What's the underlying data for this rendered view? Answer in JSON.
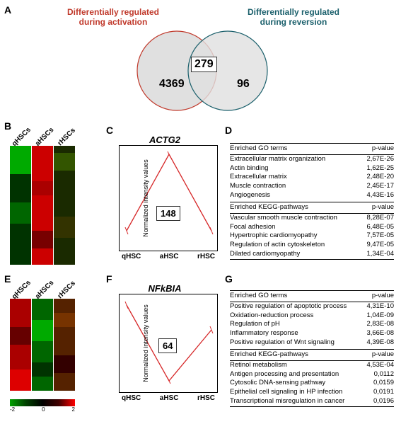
{
  "panels": {
    "A": "A",
    "B": "B",
    "C": "C",
    "D": "D",
    "E": "E",
    "F": "F",
    "G": "G"
  },
  "venn": {
    "left_label_l1": "Differentially regulated",
    "left_label_l2": "during activation",
    "right_label_l1": "Differentially regulated",
    "right_label_l2": "during reversion",
    "left_only": "4369",
    "intersection": "279",
    "right_only": "96",
    "left_stroke": "#c0392b",
    "right_stroke": "#1a5f6b",
    "fill": "#e0e0e0"
  },
  "heatmap": {
    "col1": "qHSCs",
    "col2": "aHSCs",
    "col3": "rHSCs",
    "legend_min": "-2",
    "legend_mid": "0",
    "legend_max": "2",
    "colors": {
      "low": "#00a000",
      "mid": "#000000",
      "high": "#ff0000"
    }
  },
  "chartC": {
    "title": "ACTG2",
    "count": "148",
    "x1": "qHSC",
    "x2": "aHSC",
    "x3": "rHSC",
    "ylabel": "Normalized intensity values",
    "line_color": "#d62728",
    "points": [
      [
        10,
        120
      ],
      [
        70,
        12
      ],
      [
        130,
        120
      ]
    ]
  },
  "chartF": {
    "title": "NFkBIA",
    "count": "64",
    "x1": "qHSC",
    "x2": "aHSC",
    "x3": "rHSC",
    "ylabel": "Normalized intensity values",
    "line_color": "#d62728",
    "points": [
      [
        10,
        15
      ],
      [
        70,
        122
      ],
      [
        130,
        50
      ]
    ]
  },
  "tableD": {
    "go_header_l": "Enriched GO terms",
    "go_header_r": "p-value",
    "go_rows": [
      [
        "Extracellular matrix organization",
        "2,67E-26"
      ],
      [
        "Actin binding",
        "1,62E-25"
      ],
      [
        "Extracellular matrix",
        "2,48E-20"
      ],
      [
        "Muscle contraction",
        "2,45E-17"
      ],
      [
        "Angiogenesis",
        "4,43E-16"
      ]
    ],
    "kegg_header_l": "Enriched KEGG-pathways",
    "kegg_header_r": "p-value",
    "kegg_rows": [
      [
        "Vascular smooth muscle contraction",
        "8,28E-07"
      ],
      [
        "Focal adhesion",
        "6,48E-05"
      ],
      [
        "Hypertrophic cardiomyopathy",
        "7,57E-05"
      ],
      [
        "Regulation of actin cytoskeleton",
        "9,47E-05"
      ],
      [
        "Dilated cardiomyopathy",
        "1,34E-04"
      ]
    ]
  },
  "tableG": {
    "go_header_l": "Enriched GO terms",
    "go_header_r": "p-value",
    "go_rows": [
      [
        "Positive regulation of apoptotic process",
        "4,31E-10"
      ],
      [
        "Oxidation-reduction process",
        "1,04E-09"
      ],
      [
        "Regulation of pH",
        "2,83E-08"
      ],
      [
        "Inflammatory response",
        "3,66E-08"
      ],
      [
        "Positive regulation of Wnt signaling",
        "4,39E-08"
      ]
    ],
    "kegg_header_l": "Enriched KEGG-pathways",
    "kegg_header_r": "p-value",
    "kegg_rows": [
      [
        "Retinol metabolism",
        "4,53E-04"
      ],
      [
        "Antigen processing and presentation",
        "0,0112"
      ],
      [
        "Cytosolic DNA-sensing pathway",
        "0,0159"
      ],
      [
        "Epithelial cell signaling in HP infection",
        "0,0191"
      ],
      [
        "Transcriptional misregulation in cancer",
        "0,0196"
      ]
    ]
  }
}
